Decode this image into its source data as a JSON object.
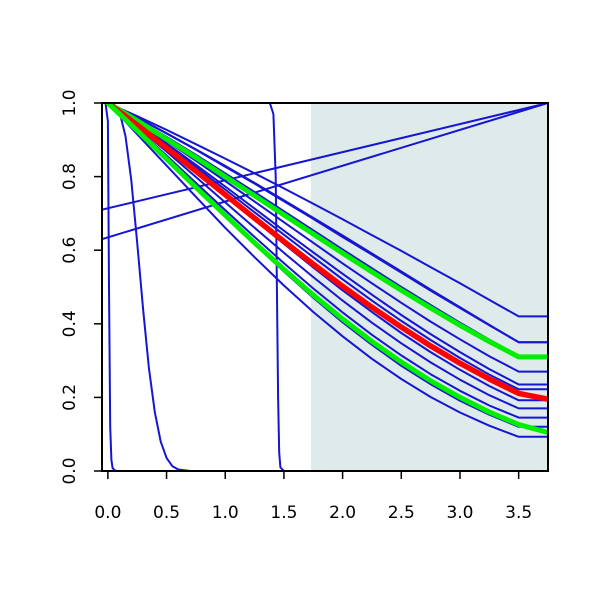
{
  "chart_data": {
    "type": "line",
    "title": "",
    "xlabel": "",
    "ylabel": "",
    "xlim": [
      -0.05,
      3.75
    ],
    "ylim": [
      0,
      1
    ],
    "grid": false,
    "legend": "none",
    "x_ticks": [
      "0.0",
      "0.5",
      "1.0",
      "1.5",
      "2.0",
      "2.5",
      "3.0",
      "3.5"
    ],
    "y_ticks": [
      "0.0",
      "0.2",
      "0.4",
      "0.6",
      "0.8",
      "1.0"
    ],
    "shaded_region": {
      "x": [
        1.73,
        3.75
      ],
      "color": "#dfeaea"
    },
    "colors": {
      "blue": "#1515d2",
      "red": "#ff0000",
      "green": "#00ee00",
      "axis": "#000000"
    },
    "series": [
      {
        "color": "blue",
        "width": 2,
        "x": [
          0,
          0.25,
          0.5,
          0.75,
          1,
          1.25,
          1.5,
          1.75,
          2,
          2.25,
          2.5,
          2.75,
          3,
          3.25,
          3.5,
          3.75
        ],
        "y": [
          1,
          0.964,
          0.927,
          0.888,
          0.849,
          0.809,
          0.768,
          0.726,
          0.684,
          0.641,
          0.598,
          0.554,
          0.51,
          0.465,
          0.42,
          0.42
        ]
      },
      {
        "color": "blue",
        "width": 2,
        "x": [
          0,
          0.25,
          0.5,
          0.75,
          1,
          1.25,
          1.5,
          1.75,
          2,
          2.25,
          2.5,
          2.75,
          3,
          3.25,
          3.5,
          3.75
        ],
        "y": [
          1,
          0.96,
          0.918,
          0.874,
          0.829,
          0.783,
          0.736,
          0.688,
          0.64,
          0.591,
          0.542,
          0.493,
          0.445,
          0.397,
          0.35,
          0.35
        ]
      },
      {
        "color": "blue",
        "width": 2,
        "x": [
          0,
          0.25,
          0.5,
          0.75,
          1,
          1.25,
          1.5,
          1.75,
          2,
          2.25,
          2.5,
          2.75,
          3,
          3.25,
          3.5,
          3.75
        ],
        "y": [
          1,
          0.96,
          0.917,
          0.873,
          0.827,
          0.781,
          0.733,
          0.685,
          0.636,
          0.588,
          0.539,
          0.49,
          0.443,
          0.396,
          0.35,
          0.35
        ]
      },
      {
        "color": "blue",
        "width": 2,
        "x": [
          0,
          0.25,
          0.5,
          0.75,
          1,
          1.25,
          1.5,
          1.75,
          2,
          2.25,
          2.5,
          2.75,
          3,
          3.25,
          3.5,
          3.75
        ],
        "y": [
          1,
          0.955,
          0.908,
          0.859,
          0.809,
          0.758,
          0.706,
          0.654,
          0.602,
          0.551,
          0.5,
          0.451,
          0.403,
          0.357,
          0.313,
          0.313
        ]
      },
      {
        "color": "blue",
        "width": 2,
        "x": [
          0,
          0.25,
          0.5,
          0.75,
          1,
          1.25,
          1.5,
          1.75,
          2,
          2.25,
          2.5,
          2.75,
          3,
          3.25,
          3.5,
          3.75
        ],
        "y": [
          1,
          0.95,
          0.897,
          0.843,
          0.788,
          0.732,
          0.676,
          0.62,
          0.564,
          0.51,
          0.457,
          0.406,
          0.358,
          0.312,
          0.27,
          0.27
        ]
      },
      {
        "color": "blue",
        "width": 2,
        "x": [
          0,
          0.25,
          0.5,
          0.75,
          1,
          1.25,
          1.5,
          1.75,
          2,
          2.25,
          2.5,
          2.75,
          3,
          3.25,
          3.5,
          3.75
        ],
        "y": [
          1,
          0.946,
          0.89,
          0.832,
          0.773,
          0.713,
          0.653,
          0.594,
          0.536,
          0.479,
          0.424,
          0.372,
          0.323,
          0.277,
          0.235,
          0.235
        ]
      },
      {
        "color": "blue",
        "width": 2,
        "x": [
          0,
          0.25,
          0.5,
          0.75,
          1,
          1.25,
          1.5,
          1.75,
          2,
          2.25,
          2.5,
          2.75,
          3,
          3.25,
          3.5,
          3.75
        ],
        "y": [
          1,
          0.945,
          0.886,
          0.826,
          0.765,
          0.703,
          0.642,
          0.581,
          0.521,
          0.463,
          0.408,
          0.356,
          0.307,
          0.262,
          0.222,
          0.222
        ]
      },
      {
        "color": "blue",
        "width": 2,
        "x": [
          0,
          0.25,
          0.5,
          0.75,
          1,
          1.25,
          1.5,
          1.75,
          2,
          2.25,
          2.5,
          2.75,
          3,
          3.25,
          3.5,
          3.75
        ],
        "y": [
          1,
          0.94,
          0.878,
          0.813,
          0.748,
          0.682,
          0.617,
          0.553,
          0.491,
          0.432,
          0.375,
          0.323,
          0.275,
          0.231,
          0.192,
          0.192
        ]
      },
      {
        "color": "blue",
        "width": 2,
        "x": [
          0,
          0.25,
          0.5,
          0.75,
          1,
          1.25,
          1.5,
          1.75,
          2,
          2.25,
          2.5,
          2.75,
          3,
          3.25,
          3.5,
          3.75
        ],
        "y": [
          1,
          0.935,
          0.868,
          0.799,
          0.73,
          0.661,
          0.593,
          0.527,
          0.463,
          0.403,
          0.347,
          0.295,
          0.248,
          0.206,
          0.17,
          0.17
        ]
      },
      {
        "color": "blue",
        "width": 2,
        "x": [
          0,
          0.25,
          0.5,
          0.75,
          1,
          1.25,
          1.5,
          1.75,
          2,
          2.25,
          2.5,
          2.75,
          3,
          3.25,
          3.5,
          3.75
        ],
        "y": [
          1,
          0.93,
          0.857,
          0.783,
          0.709,
          0.636,
          0.565,
          0.496,
          0.431,
          0.37,
          0.314,
          0.263,
          0.218,
          0.178,
          0.145,
          0.145
        ]
      },
      {
        "color": "blue",
        "width": 2,
        "x": [
          0,
          0.25,
          0.5,
          0.75,
          1,
          1.25,
          1.5,
          1.75,
          2,
          2.25,
          2.5,
          2.75,
          3,
          3.25,
          3.5,
          3.75
        ],
        "y": [
          1,
          0.925,
          0.848,
          0.77,
          0.692,
          0.616,
          0.542,
          0.471,
          0.404,
          0.343,
          0.286,
          0.236,
          0.191,
          0.153,
          0.12,
          0.12
        ]
      },
      {
        "color": "blue",
        "width": 2,
        "x": [
          0,
          0.25,
          0.5,
          0.75,
          1,
          1.25,
          1.5,
          1.75,
          2,
          2.25,
          2.5,
          2.75,
          3,
          3.25,
          3.5,
          3.75
        ],
        "y": [
          1,
          0.915,
          0.83,
          0.745,
          0.661,
          0.581,
          0.504,
          0.432,
          0.366,
          0.305,
          0.25,
          0.201,
          0.159,
          0.123,
          0.093,
          0.093
        ]
      },
      {
        "color": "blue",
        "width": 2,
        "x": [
          -0.05,
          3.75
        ],
        "y": [
          0.71,
          1.0
        ]
      },
      {
        "color": "blue",
        "width": 2,
        "x": [
          -0.05,
          3.75
        ],
        "y": [
          0.63,
          1.0
        ]
      },
      {
        "color": "blue",
        "width": 2,
        "x": [
          -0.05,
          1.38,
          1.41,
          1.43,
          1.44,
          1.45,
          1.46,
          1.47,
          1.5,
          3.75
        ],
        "y": [
          1,
          1,
          0.97,
          0.8,
          0.5,
          0.2,
          0.05,
          0.01,
          0,
          0
        ]
      },
      {
        "color": "blue",
        "width": 2,
        "x": [
          0,
          0.05,
          0.1,
          0.15,
          0.2,
          0.25,
          0.3,
          0.35,
          0.4,
          0.45,
          0.5,
          0.55,
          0.6,
          0.7,
          3.75
        ],
        "y": [
          1,
          0.997,
          0.975,
          0.91,
          0.79,
          0.62,
          0.44,
          0.28,
          0.16,
          0.08,
          0.035,
          0.013,
          0.004,
          0,
          0
        ]
      },
      {
        "color": "blue",
        "width": 2,
        "x": [
          -0.02,
          0,
          0.01,
          0.02,
          0.03,
          0.04,
          0.06,
          0.08,
          3.75
        ],
        "y": [
          1,
          0.95,
          0.5,
          0.12,
          0.03,
          0.008,
          0.001,
          0,
          0
        ]
      },
      {
        "color": "blue",
        "width": 2,
        "x": [
          -0.05,
          0,
          3.75
        ],
        "y": [
          1.0,
          1.0,
          1.0
        ]
      },
      {
        "color": "green",
        "width": 5,
        "x": [
          0,
          0.25,
          0.5,
          0.75,
          1,
          1.25,
          1.5,
          1.75,
          2,
          2.25,
          2.5,
          2.75,
          3,
          3.25,
          3.5,
          3.75
        ],
        "y": [
          1,
          0.952,
          0.902,
          0.852,
          0.8,
          0.748,
          0.696,
          0.644,
          0.592,
          0.541,
          0.491,
          0.443,
          0.396,
          0.352,
          0.31,
          0.31
        ]
      },
      {
        "color": "red",
        "width": 5.5,
        "x": [
          0,
          0.25,
          0.5,
          0.75,
          1,
          1.25,
          1.5,
          1.75,
          2,
          2.25,
          2.5,
          2.75,
          3,
          3.25,
          3.5,
          3.75
        ],
        "y": [
          1,
          0.94,
          0.878,
          0.815,
          0.751,
          0.687,
          0.624,
          0.562,
          0.502,
          0.445,
          0.391,
          0.34,
          0.293,
          0.25,
          0.211,
          0.195
        ]
      },
      {
        "color": "green",
        "width": 5,
        "x": [
          0,
          0.25,
          0.5,
          0.75,
          1,
          1.25,
          1.5,
          1.75,
          2,
          2.25,
          2.5,
          2.75,
          3,
          3.25,
          3.5,
          3.75
        ],
        "y": [
          1,
          0.925,
          0.848,
          0.771,
          0.695,
          0.62,
          0.548,
          0.478,
          0.413,
          0.352,
          0.296,
          0.245,
          0.2,
          0.16,
          0.126,
          0.105
        ]
      }
    ]
  }
}
